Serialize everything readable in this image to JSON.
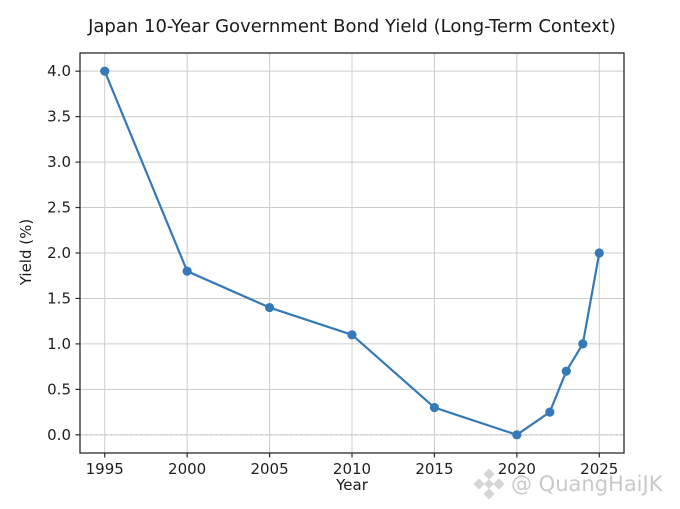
{
  "watermark": {
    "icon": "diamond-logo-icon",
    "text": "@ QuangHaiJK",
    "color": "#c9c9c9"
  },
  "colors": {
    "line": "#3579b8",
    "grid": "#cccccc",
    "spine": "#2b2b2b",
    "text": "#1f1f1f",
    "zero_line": "#c4c4c4",
    "background": "#ffffff"
  },
  "chart_data": {
    "type": "line",
    "title": "Japan 10-Year Government Bond Yield (Long-Term Context)",
    "xlabel": "Year",
    "ylabel": "Yield (%)",
    "x": [
      1995,
      2000,
      2005,
      2010,
      2015,
      2020,
      2022,
      2023,
      2024,
      2025
    ],
    "y": [
      4.0,
      1.8,
      1.4,
      1.1,
      0.3,
      0.0,
      0.25,
      0.7,
      1.0,
      2.0
    ],
    "series_name": "Japan 10-Year Government Bond Yield",
    "xticks": [
      1995,
      2000,
      2005,
      2010,
      2015,
      2020,
      2025
    ],
    "xtick_labels": [
      "1995",
      "2000",
      "2005",
      "2010",
      "2015",
      "2020",
      "2025"
    ],
    "yticks": [
      0.0,
      0.5,
      1.0,
      1.5,
      2.0,
      2.5,
      3.0,
      3.5,
      4.0
    ],
    "ytick_labels": [
      "0.0",
      "0.5",
      "1.0",
      "1.5",
      "2.0",
      "2.5",
      "3.0",
      "3.5",
      "4.0"
    ],
    "xlim": [
      1993.5,
      2026.5
    ],
    "ylim": [
      -0.2,
      4.2
    ],
    "grid": true,
    "legend": false,
    "marker": "o",
    "zero_reference_line": {
      "y": 0.0,
      "style": "dashed"
    }
  }
}
